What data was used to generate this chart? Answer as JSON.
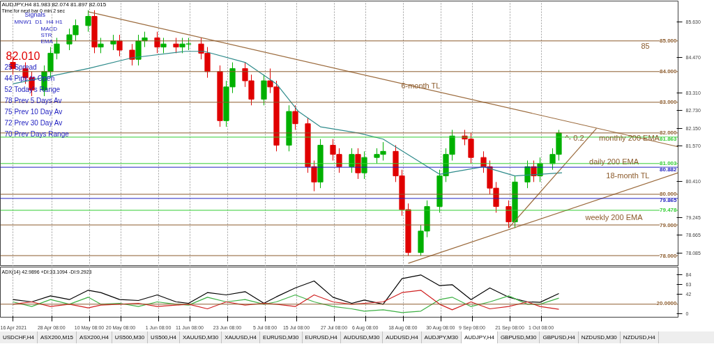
{
  "chart_data": [
    {
      "type": "candlestick",
      "title": "AUDJPY,H4 81.983 82.074 81.897 82.015",
      "subtitle": "Time for next bar 0 min 2 sec",
      "x": [
        "2021-04-16",
        "2021-04-20",
        "2021-04-22",
        "2021-04-26",
        "2021-04-28",
        "2021-04-30",
        "2021-05-04",
        "2021-05-06",
        "2021-05-10",
        "2021-05-12",
        "2021-05-14",
        "2021-05-18",
        "2021-05-20",
        "2021-05-24",
        "2021-05-26",
        "2021-05-28",
        "2021-06-01",
        "2021-06-03",
        "2021-06-07",
        "2021-06-09",
        "2021-06-11",
        "2021-06-15",
        "2021-06-17",
        "2021-06-21",
        "2021-06-23",
        "2021-06-25",
        "2021-06-29",
        "2021-07-01",
        "2021-07-05",
        "2021-07-07",
        "2021-07-09",
        "2021-07-13",
        "2021-07-15",
        "2021-07-19",
        "2021-07-21",
        "2021-07-23",
        "2021-07-27",
        "2021-07-29",
        "2021-08-02",
        "2021-08-04",
        "2021-08-06",
        "2021-08-10",
        "2021-08-12",
        "2021-08-16",
        "2021-08-18",
        "2021-08-20",
        "2021-08-24",
        "2021-08-26",
        "2021-08-30",
        "2021-09-01",
        "2021-09-03",
        "2021-09-07",
        "2021-09-09",
        "2021-09-13",
        "2021-09-15",
        "2021-09-17",
        "2021-09-21",
        "2021-09-23",
        "2021-09-27",
        "2021-09-29",
        "2021-10-01",
        "2021-10-05",
        "2021-10-07"
      ],
      "ohlc": [
        [
          84.3,
          84.5,
          83.9,
          84.1
        ],
        [
          84.1,
          84.3,
          83.6,
          83.8
        ],
        [
          83.8,
          84.0,
          83.2,
          83.4
        ],
        [
          83.4,
          84.2,
          83.2,
          84.0
        ],
        [
          84.0,
          84.8,
          83.8,
          84.6
        ],
        [
          84.6,
          85.1,
          84.4,
          84.9
        ],
        [
          84.9,
          85.4,
          84.7,
          85.2
        ],
        [
          85.2,
          85.7,
          85.0,
          85.5
        ],
        [
          85.5,
          86.0,
          85.3,
          85.8
        ],
        [
          85.8,
          86.0,
          84.6,
          84.8
        ],
        [
          84.8,
          85.1,
          84.6,
          84.9
        ],
        [
          84.9,
          85.2,
          84.7,
          85.0
        ],
        [
          85.0,
          85.2,
          84.5,
          84.7
        ],
        [
          84.7,
          84.9,
          84.2,
          84.4
        ],
        [
          84.4,
          85.2,
          84.2,
          85.0
        ],
        [
          85.0,
          85.3,
          84.8,
          85.1
        ],
        [
          85.1,
          85.3,
          84.6,
          84.8
        ],
        [
          84.8,
          85.1,
          84.6,
          84.9
        ],
        [
          84.9,
          85.1,
          84.6,
          84.8
        ],
        [
          84.8,
          85.1,
          84.6,
          84.9
        ],
        [
          84.9,
          85.1,
          84.7,
          84.9
        ],
        [
          84.9,
          85.1,
          84.4,
          84.6
        ],
        [
          84.6,
          84.8,
          83.8,
          84.0
        ],
        [
          84.0,
          84.2,
          82.2,
          82.4
        ],
        [
          82.4,
          83.7,
          82.2,
          83.5
        ],
        [
          83.5,
          84.3,
          83.3,
          84.1
        ],
        [
          84.1,
          84.3,
          83.5,
          83.7
        ],
        [
          83.7,
          83.9,
          82.9,
          83.1
        ],
        [
          83.1,
          83.9,
          82.9,
          83.7
        ],
        [
          83.7,
          84.1,
          83.3,
          83.5
        ],
        [
          83.5,
          83.7,
          81.4,
          81.6
        ],
        [
          81.6,
          82.9,
          81.4,
          82.7
        ],
        [
          82.7,
          82.9,
          82.1,
          82.3
        ],
        [
          82.3,
          82.5,
          80.7,
          80.9
        ],
        [
          80.9,
          81.1,
          80.1,
          80.4
        ],
        [
          80.4,
          81.8,
          80.2,
          81.6
        ],
        [
          81.6,
          81.8,
          81.1,
          81.3
        ],
        [
          81.3,
          81.5,
          80.7,
          80.9
        ],
        [
          80.9,
          81.5,
          80.7,
          81.3
        ],
        [
          81.3,
          81.5,
          80.5,
          80.7
        ],
        [
          80.7,
          81.4,
          80.5,
          81.2
        ],
        [
          81.2,
          81.5,
          81.0,
          81.3
        ],
        [
          81.3,
          81.7,
          81.1,
          81.4
        ],
        [
          81.4,
          81.6,
          80.4,
          80.6
        ],
        [
          80.6,
          80.8,
          79.3,
          79.5
        ],
        [
          79.5,
          79.7,
          78.0,
          78.1
        ],
        [
          78.1,
          79.0,
          78.0,
          78.8
        ],
        [
          78.8,
          79.8,
          78.6,
          79.6
        ],
        [
          79.6,
          80.8,
          79.4,
          80.6
        ],
        [
          80.6,
          81.5,
          80.4,
          81.3
        ],
        [
          81.3,
          82.1,
          81.1,
          81.9
        ],
        [
          81.9,
          82.1,
          81.6,
          81.8
        ],
        [
          81.8,
          82.0,
          81.0,
          81.2
        ],
        [
          81.2,
          81.4,
          80.7,
          80.9
        ],
        [
          80.9,
          81.1,
          80.0,
          80.2
        ],
        [
          80.2,
          80.4,
          79.4,
          79.6
        ],
        [
          79.6,
          79.8,
          78.9,
          79.1
        ],
        [
          79.1,
          80.6,
          78.9,
          80.4
        ],
        [
          80.4,
          81.1,
          80.2,
          80.9
        ],
        [
          80.9,
          81.1,
          80.4,
          80.6
        ],
        [
          80.6,
          81.2,
          80.4,
          81.0
        ],
        [
          81.0,
          81.5,
          80.8,
          81.3
        ],
        [
          81.3,
          82.1,
          81.1,
          82.0
        ]
      ],
      "colors": [
        "#e00000",
        "#e00000",
        "#e00000",
        "#00b000",
        "#00b000",
        "#00b000",
        "#00b000",
        "#00b000",
        "#00b000",
        "#e00000",
        "#00b000",
        "#00b000",
        "#e00000",
        "#e00000",
        "#00b000",
        "#00b000",
        "#e00000",
        "#00b000",
        "#e00000",
        "#00b000",
        "#00b000",
        "#e00000",
        "#e00000",
        "#e00000",
        "#00b000",
        "#00b000",
        "#e00000",
        "#e00000",
        "#00b000",
        "#e00000",
        "#e00000",
        "#00b000",
        "#e00000",
        "#e00000",
        "#e00000",
        "#00b000",
        "#e00000",
        "#e00000",
        "#00b000",
        "#e00000",
        "#00b000",
        "#00b000",
        "#00b000",
        "#e00000",
        "#e00000",
        "#e00000",
        "#00b000",
        "#00b000",
        "#00b000",
        "#00b000",
        "#00b000",
        "#e00000",
        "#e00000",
        "#e00000",
        "#e00000",
        "#e00000",
        "#e00000",
        "#00b000",
        "#00b000",
        "#e00000",
        "#00b000",
        "#00b000",
        "#00b000"
      ],
      "series": [
        {
          "type": "line",
          "color": "#2e8b8b",
          "x": [
            "2021-04-16",
            "2021-05-10",
            "2021-05-24",
            "2021-06-10",
            "2021-06-16",
            "2021-06-29",
            "2021-07-09",
            "2021-07-16",
            "2021-07-23",
            "2021-08-04",
            "2021-08-12",
            "2021-08-30",
            "2021-09-13",
            "2021-09-23",
            "2021-10-08"
          ],
          "values": [
            83.6,
            84.1,
            84.45,
            84.66,
            84.66,
            84.3,
            83.6,
            82.7,
            82.2,
            82.0,
            81.8,
            80.65,
            80.9,
            80.6,
            80.7
          ]
        },
        {
          "type": "line",
          "color": "#9b6a3c",
          "x": [
            "2021-05-10",
            "2021-11-14"
          ],
          "values": [
            85.95,
            81.55
          ]
        },
        {
          "type": "line",
          "color": "#9b6a3c",
          "x": [
            "2021-08-20",
            "2021-11-14"
          ],
          "values": [
            77.75,
            80.7
          ]
        },
        {
          "type": "line",
          "color": "#9b6a3c",
          "x": [
            "2021-09-21",
            "2021-10-19"
          ],
          "values": [
            78.9,
            82.15
          ]
        }
      ],
      "xlim": [
        "2021-04-12",
        "2021-11-14"
      ],
      "xticks": [
        {
          "value": "2021-04-16",
          "label": null
        },
        {
          "value": "2021-04-28T08:00",
          "label": null
        },
        {
          "value": "2021-05-10T08:00",
          "label": null
        },
        {
          "value": "2021-05-20T08:00",
          "label": null
        },
        {
          "value": "2021-06-01T08:00",
          "label": null
        },
        {
          "value": "2021-06-11T08:00",
          "label": null
        },
        {
          "value": "2021-06-23T08:00",
          "label": null
        },
        {
          "value": "2021-07-05T08:00",
          "label": null
        },
        {
          "value": "2021-07-15T08:00",
          "label": null
        },
        {
          "value": "2021-07-27T08:00",
          "label": null
        },
        {
          "value": "2021-08-06T08:00",
          "label": null
        },
        {
          "value": "2021-08-18T08:00",
          "label": null
        },
        {
          "value": "2021-08-30T08:00",
          "label": null
        },
        {
          "value": "2021-09-09T08:00",
          "label": null
        },
        {
          "value": "2021-09-21T08:00",
          "label": null
        },
        {
          "value": "2021-10-01T08:00",
          "label": null
        }
      ],
      "ylim": [
        77.65,
        86.3
      ],
      "yticks": [
        {
          "value": 85.63,
          "label": "85.630"
        },
        {
          "value": 84.47,
          "label": "84.470"
        },
        {
          "value": 83.31,
          "label": "83.310"
        },
        {
          "value": 82.73,
          "label": "82.730"
        },
        {
          "value": 82.15,
          "label": "82.150"
        },
        {
          "value": 81.57,
          "label": "81.570"
        },
        {
          "value": 80.41,
          "label": "80.410"
        },
        {
          "value": 79.245,
          "label": "79.245"
        },
        {
          "value": 78.665,
          "label": "78.665"
        },
        {
          "value": 78.085,
          "label": "78.085"
        }
      ],
      "tick_labels": "y",
      "grid": "x",
      "ref_lines": [
        {
          "axis": "y",
          "value": 85,
          "label": "85.000",
          "color": "#8b5a2b"
        },
        {
          "axis": "y",
          "value": 84,
          "label": "84.000",
          "color": "#8b5a2b"
        },
        {
          "axis": "y",
          "value": 83,
          "label": "83.000",
          "color": "#8b5a2b"
        },
        {
          "axis": "y",
          "value": 82,
          "label": "82.000",
          "color": "#8b5a2b"
        },
        {
          "axis": "y",
          "value": 81.863,
          "label": "81.863",
          "color": "#32cd32"
        },
        {
          "axis": "y",
          "value": 81.003,
          "label": "81.003",
          "color": "#32cd32"
        },
        {
          "axis": "y",
          "value": 80.882,
          "label": "80.882",
          "color": "#2020c0"
        },
        {
          "axis": "y",
          "value": 80,
          "label": "80.000",
          "color": "#8b5a2b"
        },
        {
          "axis": "y",
          "value": 79.865,
          "label": "79.865",
          "color": "#2020c0"
        },
        {
          "axis": "y",
          "value": 79.478,
          "label": "79.478",
          "color": "#32cd32"
        },
        {
          "axis": "y",
          "value": 79,
          "label": "79.000",
          "color": "#8b5a2b"
        },
        {
          "axis": "y",
          "value": 78,
          "label": "78.000",
          "color": "#8b5a2b"
        }
      ],
      "annotations": [
        "Signals",
        "MN",
        "W1",
        "D1",
        "H4",
        "H1",
        "MACD",
        "STR",
        "EMA",
        "82.010",
        "25 Spread",
        "44 Pips to Open",
        "52 Today's Range",
        "78 Prev 5 Days Av",
        "75 Prev 10 Day Av",
        "72 Prev 30 Day Av",
        "70 Prev Days Range",
        "85",
        "monthly 200 EMA",
        "daily 200 EMA",
        "weekly 200 EMA",
        {
          "text": "6-month TL",
          "x": "2021-08-24",
          "y": 83.55
        },
        "18-month TL",
        {
          "text": "^- 0.2",
          "x": "2021-10-12",
          "y": 81.85
        }
      ]
    },
    {
      "type": "line",
      "title": "ADX(14) 42.9896 +DI:33.1094 -DI:9.2923",
      "x": [
        "2021-04-16",
        "2021-04-22",
        "2021-04-28",
        "2021-05-04",
        "2021-05-10",
        "2021-05-14",
        "2021-05-20",
        "2021-05-26",
        "2021-06-01",
        "2021-06-07",
        "2021-06-11",
        "2021-06-17",
        "2021-06-23",
        "2021-06-29",
        "2021-07-05",
        "2021-07-09",
        "2021-07-15",
        "2021-07-21",
        "2021-07-27",
        "2021-08-02",
        "2021-08-06",
        "2021-08-12",
        "2021-08-18",
        "2021-08-24",
        "2021-08-30",
        "2021-09-03",
        "2021-09-09",
        "2021-09-15",
        "2021-09-21",
        "2021-09-27",
        "2021-10-01",
        "2021-10-07"
      ],
      "series": [
        {
          "color": "#000000",
          "values": [
            30,
            25,
            38,
            30,
            50,
            45,
            30,
            28,
            40,
            25,
            22,
            45,
            40,
            47,
            22,
            36,
            55,
            70,
            35,
            22,
            29,
            20,
            75,
            83,
            60,
            62,
            30,
            55,
            35,
            25,
            24,
            43
          ]
        },
        {
          "color": "#3cb043",
          "values": [
            25,
            15,
            30,
            20,
            35,
            20,
            22,
            15,
            25,
            20,
            18,
            35,
            25,
            30,
            20,
            25,
            40,
            25,
            15,
            10,
            5,
            8,
            2,
            5,
            30,
            35,
            15,
            25,
            38,
            20,
            20,
            33
          ]
        },
        {
          "color": "#d02020",
          "values": [
            20,
            25,
            15,
            20,
            12,
            18,
            20,
            22,
            15,
            18,
            20,
            10,
            25,
            18,
            22,
            20,
            15,
            40,
            25,
            20,
            22,
            25,
            45,
            50,
            20,
            8,
            25,
            10,
            15,
            25,
            15,
            9
          ]
        }
      ],
      "xlim": [
        "2021-04-12",
        "2021-11-14"
      ],
      "xticks": [
        {
          "value": "2021-04-16",
          "label": "16 Apr 2021"
        },
        {
          "value": "2021-04-28T08:00",
          "label": "28 Apr 08:00"
        },
        {
          "value": "2021-05-10T08:00",
          "label": "10 May 08:00"
        },
        {
          "value": "2021-05-20T08:00",
          "label": "20 May 08:00"
        },
        {
          "value": "2021-06-01T08:00",
          "label": "1 Jun 08:00"
        },
        {
          "value": "2021-06-11T08:00",
          "label": "11 Jun 08:00"
        },
        {
          "value": "2021-06-23T08:00",
          "label": "23 Jun 08:00"
        },
        {
          "value": "2021-07-05T08:00",
          "label": "5 Jul 08:00"
        },
        {
          "value": "2021-07-15T08:00",
          "label": "15 Jul 08:00"
        },
        {
          "value": "2021-07-27T08:00",
          "label": "27 Jul 08:00"
        },
        {
          "value": "2021-08-06T08:00",
          "label": "6 Aug 08:00"
        },
        {
          "value": "2021-08-18T08:00",
          "label": "18 Aug 08:00"
        },
        {
          "value": "2021-08-30T08:00",
          "label": "30 Aug 08:00"
        },
        {
          "value": "2021-09-09T08:00",
          "label": "9 Sep 08:00"
        },
        {
          "value": "2021-09-21T08:00",
          "label": "21 Sep 08:00"
        },
        {
          "value": "2021-10-01T08:00",
          "label": "1 Oct 08:00"
        }
      ],
      "ylim": [
        -8,
        100
      ],
      "yticks": [
        0,
        42,
        63,
        84
      ],
      "grid": "x",
      "ref_lines": [
        {
          "axis": "y",
          "value": 20,
          "label": "20.0000",
          "color": "#8b5a2b"
        }
      ],
      "annotations": [
        "USDCHF,H4",
        "ASX200,M15",
        "ASX200,H4",
        "US500,M30",
        "US500,H4",
        "XAUUSD,M30",
        "XAUUSD,H4",
        "EURUSD,M30",
        "EURUSD,H4",
        "AUDUSD,M30",
        "AUDUSD,H4",
        "AUDJPY,M30",
        "AUDJPY,H4",
        "GBPUSD,M30",
        "GBPUSD,H4",
        "NZDUSD,M30",
        "NZDUSD,H4"
      ]
    }
  ]
}
